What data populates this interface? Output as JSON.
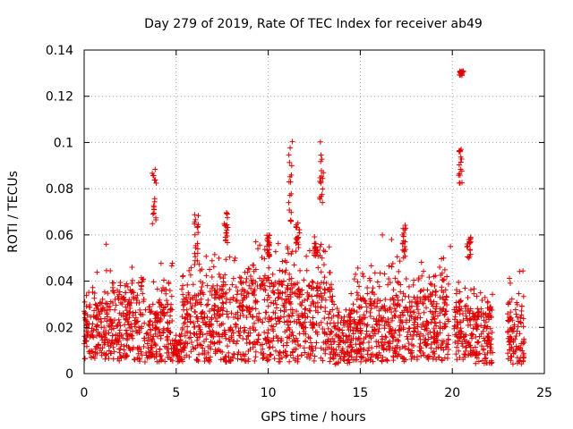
{
  "chart_data": {
    "type": "scatter",
    "title": "Day 279 of 2019, Rate Of TEC Index for receiver ab49",
    "xlabel": "GPS time / hours",
    "ylabel": "ROTI / TECUs",
    "xlim": [
      0,
      25
    ],
    "ylim": [
      0,
      0.14
    ],
    "xticks": [
      0,
      5,
      10,
      15,
      20,
      25
    ],
    "xtick_labels": [
      "0",
      "5",
      "10",
      "15",
      "20",
      "25"
    ],
    "yticks": [
      0,
      0.02,
      0.04,
      0.06,
      0.08,
      0.1,
      0.12,
      0.14
    ],
    "ytick_labels": [
      "0",
      "0.02",
      "0.04",
      "0.06",
      "0.08",
      "0.1",
      "0.12",
      "0.14"
    ],
    "grid": true,
    "marker": "+",
    "color": "#e00000",
    "series": [
      {
        "name": "ROTI",
        "segments": [
          {
            "start": 0.0,
            "end": 1.5,
            "base_lo": 0.006,
            "base_hi": 0.03,
            "peak": 0.046
          },
          {
            "start": 1.5,
            "end": 3.3,
            "base_lo": 0.005,
            "base_hi": 0.032,
            "peak": 0.044
          },
          {
            "start": 3.3,
            "end": 4.8,
            "base_lo": 0.005,
            "base_hi": 0.03,
            "peak": 0.048
          },
          {
            "start": 4.8,
            "end": 5.3,
            "base_lo": 0.005,
            "base_hi": 0.014,
            "peak": 0.02
          },
          {
            "start": 5.3,
            "end": 7.0,
            "base_lo": 0.005,
            "base_hi": 0.034,
            "peak": 0.052
          },
          {
            "start": 7.0,
            "end": 9.0,
            "base_lo": 0.005,
            "base_hi": 0.036,
            "peak": 0.052
          },
          {
            "start": 9.0,
            "end": 11.0,
            "base_lo": 0.005,
            "base_hi": 0.04,
            "peak": 0.058
          },
          {
            "start": 11.0,
            "end": 13.5,
            "base_lo": 0.005,
            "base_hi": 0.038,
            "peak": 0.058
          },
          {
            "start": 13.5,
            "end": 14.5,
            "base_lo": 0.004,
            "base_hi": 0.022,
            "peak": 0.03
          },
          {
            "start": 14.5,
            "end": 17.0,
            "base_lo": 0.005,
            "base_hi": 0.032,
            "peak": 0.048
          },
          {
            "start": 17.0,
            "end": 19.8,
            "base_lo": 0.005,
            "base_hi": 0.033,
            "peak": 0.052
          },
          {
            "start": 20.1,
            "end": 21.0,
            "base_lo": 0.006,
            "base_hi": 0.028,
            "peak": 0.04
          },
          {
            "start": 21.0,
            "end": 22.2,
            "base_lo": 0.004,
            "base_hi": 0.026,
            "peak": 0.038
          },
          {
            "start": 23.0,
            "end": 23.9,
            "base_lo": 0.004,
            "base_hi": 0.024,
            "peak": 0.046
          }
        ],
        "clusters": [
          {
            "x": 3.8,
            "ylo": 0.059,
            "yhi": 0.089
          },
          {
            "x": 6.1,
            "ylo": 0.05,
            "yhi": 0.071
          },
          {
            "x": 7.7,
            "ylo": 0.055,
            "yhi": 0.071
          },
          {
            "x": 10.0,
            "ylo": 0.05,
            "yhi": 0.06
          },
          {
            "x": 11.2,
            "ylo": 0.065,
            "yhi": 0.101
          },
          {
            "x": 11.6,
            "ylo": 0.055,
            "yhi": 0.066
          },
          {
            "x": 12.9,
            "ylo": 0.074,
            "yhi": 0.103
          },
          {
            "x": 12.6,
            "ylo": 0.05,
            "yhi": 0.06
          },
          {
            "x": 17.4,
            "ylo": 0.05,
            "yhi": 0.065
          },
          {
            "x": 20.45,
            "ylo": 0.082,
            "yhi": 0.098
          },
          {
            "x": 20.5,
            "ylo": 0.129,
            "yhi": 0.131
          },
          {
            "x": 20.9,
            "ylo": 0.05,
            "yhi": 0.06
          }
        ],
        "outliers": [
          {
            "x": 1.2,
            "y": 0.056
          },
          {
            "x": 2.6,
            "y": 0.046
          },
          {
            "x": 4.6,
            "y": 0.039
          },
          {
            "x": 16.2,
            "y": 0.06
          },
          {
            "x": 16.7,
            "y": 0.058
          },
          {
            "x": 19.9,
            "y": 0.055
          }
        ]
      }
    ]
  }
}
